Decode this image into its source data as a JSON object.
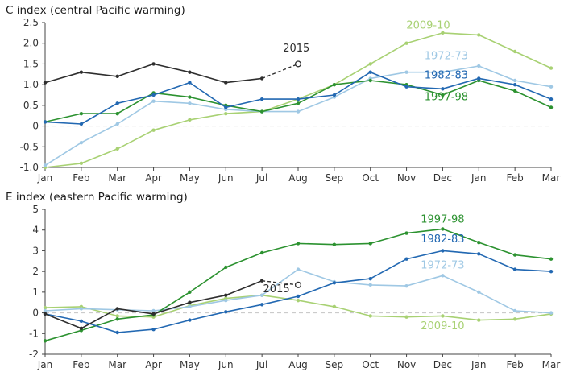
{
  "colors": {
    "green2009": "#a8d173",
    "blue1972": "#9fc8e4",
    "blue1982": "#2268b2",
    "green1997": "#2c9230",
    "black2015": "#2e2e2e",
    "zero_line": "#c4c4c4",
    "axis": "#444444"
  },
  "chart_data": [
    {
      "type": "line",
      "title": "C index (central Pacific warming)",
      "x_labels": [
        "Jan",
        "Feb",
        "Mar",
        "Apr",
        "May",
        "Jun",
        "Jul",
        "Aug",
        "Sep",
        "Oct",
        "Nov",
        "Dec",
        "Jan",
        "Feb",
        "Mar"
      ],
      "ylim": [
        -1.0,
        2.5
      ],
      "yticks": [
        2.5,
        2.0,
        1.5,
        1.0,
        0.5,
        0,
        -0.5,
        -1.0
      ],
      "ytick_labels": [
        "2.5",
        "2.0",
        "1.5",
        "1.0",
        "0.5",
        "0",
        "-0.5",
        "-1.0"
      ],
      "zero_line": true,
      "grid": false,
      "series": [
        {
          "name": "2009-10",
          "color": "green2009",
          "values": [
            -1.0,
            -0.9,
            -0.55,
            -0.1,
            0.15,
            0.3,
            0.35,
            0.65,
            1.0,
            1.5,
            2.0,
            2.25,
            2.2,
            1.8,
            1.4
          ]
        },
        {
          "name": "1972-73",
          "color": "blue1972",
          "values": [
            -0.95,
            -0.4,
            0.05,
            0.6,
            0.55,
            0.4,
            0.35,
            0.35,
            0.7,
            1.15,
            1.3,
            1.3,
            1.45,
            1.1,
            0.95
          ]
        },
        {
          "name": "1997-98",
          "color": "green1997",
          "values": [
            0.1,
            0.3,
            0.3,
            0.8,
            0.7,
            0.5,
            0.35,
            0.55,
            1.0,
            1.1,
            1.0,
            0.75,
            1.1,
            0.85,
            0.45
          ]
        },
        {
          "name": "1982-83",
          "color": "blue1982",
          "values": [
            0.1,
            0.05,
            0.55,
            0.75,
            1.05,
            0.45,
            0.65,
            0.65,
            0.75,
            1.3,
            0.95,
            0.9,
            1.15,
            1.0,
            0.65
          ]
        },
        {
          "name": "2015",
          "color": "black2015",
          "values": [
            1.05,
            1.3,
            1.2,
            1.5,
            1.3,
            1.05,
            1.15,
            1.5
          ],
          "forecast_last": true
        }
      ],
      "annotations": [
        {
          "text": "2009-10",
          "x": 10.6,
          "y": 2.35,
          "color": "green2009"
        },
        {
          "text": "2015",
          "x": 6.95,
          "y": 1.8,
          "color": "black2015"
        },
        {
          "text": "1972-73",
          "x": 11.1,
          "y": 1.62,
          "color": "blue1972"
        },
        {
          "text": "1982-83",
          "x": 11.1,
          "y": 1.15,
          "color": "blue1982"
        },
        {
          "text": "1997-98",
          "x": 11.1,
          "y": 0.62,
          "color": "green1997"
        }
      ]
    },
    {
      "type": "line",
      "title": "E index (eastern Pacific warming)",
      "x_labels": [
        "Jan",
        "Feb",
        "Mar",
        "Apr",
        "May",
        "Jun",
        "Jul",
        "Aug",
        "Sep",
        "Oct",
        "Nov",
        "Dec",
        "Jan",
        "Feb",
        "Mar"
      ],
      "ylim": [
        -2,
        5
      ],
      "yticks": [
        5,
        4,
        3,
        2,
        1,
        0,
        -1,
        -2
      ],
      "ytick_labels": [
        "5",
        "4",
        "3",
        "2",
        "1",
        "0",
        "-1",
        "-2"
      ],
      "zero_line": true,
      "grid": false,
      "series": [
        {
          "name": "2009-10",
          "color": "green2009",
          "values": [
            0.25,
            0.3,
            -0.15,
            -0.2,
            0.35,
            0.7,
            0.85,
            0.6,
            0.3,
            -0.15,
            -0.2,
            -0.15,
            -0.35,
            -0.3,
            -0.05
          ]
        },
        {
          "name": "1972-73",
          "color": "blue1972",
          "values": [
            0.1,
            0.2,
            0.15,
            0.1,
            0.3,
            0.6,
            0.85,
            2.1,
            1.5,
            1.35,
            1.3,
            1.8,
            1.0,
            0.1,
            0.0
          ]
        },
        {
          "name": "1997-98",
          "color": "green1997",
          "values": [
            -1.35,
            -0.85,
            -0.3,
            -0.1,
            1.0,
            2.2,
            2.9,
            3.35,
            3.3,
            3.35,
            3.85,
            4.05,
            3.4,
            2.8,
            2.6
          ]
        },
        {
          "name": "1982-83",
          "color": "blue1982",
          "values": [
            -0.05,
            -0.4,
            -0.95,
            -0.8,
            -0.35,
            0.05,
            0.4,
            0.8,
            1.45,
            1.65,
            2.6,
            3.0,
            2.85,
            2.1,
            2.0
          ]
        },
        {
          "name": "2015",
          "color": "black2015",
          "values": [
            -0.05,
            -0.75,
            0.2,
            -0.05,
            0.5,
            0.85,
            1.55,
            1.35
          ],
          "forecast_last": true
        }
      ],
      "annotations": [
        {
          "text": "1997-98",
          "x": 11.0,
          "y": 4.35,
          "color": "green1997"
        },
        {
          "text": "1982-83",
          "x": 11.0,
          "y": 3.4,
          "color": "blue1982"
        },
        {
          "text": "1972-73",
          "x": 11.0,
          "y": 2.15,
          "color": "blue1972"
        },
        {
          "text": "2009-10",
          "x": 11.0,
          "y": -0.8,
          "color": "green2009"
        },
        {
          "text": "2015",
          "x": 6.4,
          "y": 1.0,
          "color": "black2015"
        }
      ]
    }
  ]
}
